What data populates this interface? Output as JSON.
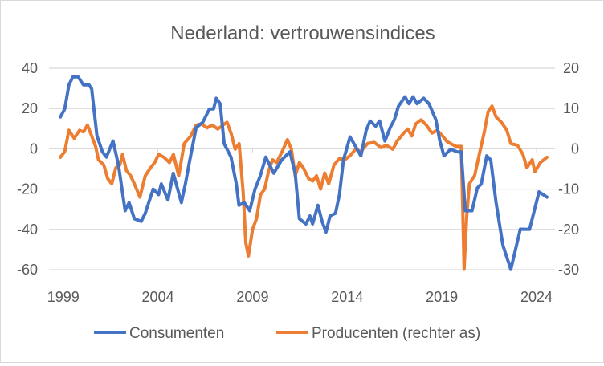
{
  "chart_data": {
    "type": "line",
    "title": "Nederland: vertrouwensindices",
    "xlabel": "",
    "ylabel": "",
    "xlim": [
      1998.8,
      2024.55
    ],
    "ylim_left": [
      -60,
      40
    ],
    "ylim_right": [
      -30,
      20
    ],
    "x_ticks": [
      1999,
      2004,
      2009,
      2014,
      2019,
      2024
    ],
    "x_tick_labels": [
      "1999",
      "2004",
      "2009",
      "2014",
      "2019",
      "2024"
    ],
    "y_left_ticks": [
      40,
      20,
      0,
      -20,
      -40,
      -60
    ],
    "y_left_tick_labels": [
      "40",
      "20",
      "0",
      "-20",
      "-40",
      "-60"
    ],
    "y_right_ticks": [
      20,
      10,
      0,
      -10,
      -20,
      -30
    ],
    "y_right_tick_labels": [
      "20",
      "10",
      "0",
      "-10",
      "-20",
      "-30"
    ],
    "grid": true,
    "legend_position": "bottom",
    "series": [
      {
        "name": "Consumenten",
        "axis": "left",
        "color": "#4472C4",
        "x": [
          1998.85,
          1999.08,
          1999.3,
          1999.51,
          1999.79,
          2000.07,
          2000.36,
          2000.5,
          2000.78,
          2001.07,
          2001.28,
          2001.63,
          2001.92,
          2002.27,
          2002.48,
          2002.76,
          2003.12,
          2003.33,
          2003.61,
          2003.75,
          2004.04,
          2004.18,
          2004.53,
          2004.81,
          2005.24,
          2005.45,
          2005.66,
          2006.02,
          2006.37,
          2006.72,
          2006.94,
          2007.08,
          2007.29,
          2007.5,
          2007.86,
          2008.14,
          2008.28,
          2008.56,
          2008.85,
          2009.13,
          2009.41,
          2009.7,
          2010.12,
          2010.54,
          2010.97,
          2011.25,
          2011.47,
          2011.82,
          2012.03,
          2012.17,
          2012.45,
          2012.67,
          2012.88,
          2013.09,
          2013.38,
          2013.59,
          2013.8,
          2014.15,
          2014.36,
          2014.72,
          2015.0,
          2015.21,
          2015.5,
          2015.71,
          2015.99,
          2016.27,
          2016.49,
          2016.7,
          2017.05,
          2017.26,
          2017.48,
          2017.69,
          2018.04,
          2018.32,
          2018.68,
          2018.89,
          2019.11,
          2019.46,
          2019.81,
          2020.02,
          2020.23,
          2020.59,
          2020.87,
          2021.08,
          2021.37,
          2021.58,
          2021.86,
          2022.22,
          2022.64,
          2023.14,
          2023.63,
          2024.13,
          2024.55
        ],
        "values": [
          15.8,
          19.8,
          31.7,
          35.7,
          35.7,
          31.7,
          31.7,
          29.8,
          6.5,
          -1.5,
          -4.1,
          3.9,
          -8.1,
          -30.7,
          -26.7,
          -34.7,
          -36,
          -32,
          -24,
          -20,
          -22.7,
          -17.4,
          -25.4,
          -12.1,
          -26.7,
          -17.4,
          -6.8,
          10.5,
          13.1,
          19.8,
          19.8,
          25.1,
          22.4,
          2.5,
          -4.1,
          -17.4,
          -28,
          -26.7,
          -30.7,
          -20,
          -13.4,
          -4.1,
          -12.1,
          -5.5,
          -1.5,
          -12.1,
          -34.7,
          -37.3,
          -33.3,
          -37.3,
          -28,
          -36,
          -41.3,
          -33.3,
          -32,
          -22.7,
          -5.5,
          5.9,
          2.5,
          -3.5,
          9.2,
          13.8,
          11.2,
          13.8,
          3.9,
          10.5,
          14.5,
          21.1,
          25.8,
          22.4,
          25.8,
          22.4,
          25.1,
          22.4,
          14.5,
          3.9,
          -3.5,
          -0.2,
          -1.5,
          -1.5,
          -30.7,
          -30.7,
          -19.4,
          -17.4,
          -3.5,
          -5.5,
          -26.7,
          -47.9,
          -59.9,
          -39.9,
          -40,
          -21.4,
          -24
        ]
      },
      {
        "name": "Producenten (rechter as)",
        "axis": "right",
        "color": "#ED7D31",
        "x": [
          1998.85,
          1999.08,
          1999.3,
          1999.58,
          1999.86,
          2000.07,
          2000.28,
          2000.5,
          2000.71,
          2000.86,
          2001.14,
          2001.35,
          2001.56,
          2001.78,
          2001.99,
          2002.13,
          2002.34,
          2002.55,
          2002.76,
          2003.05,
          2003.33,
          2003.61,
          2003.83,
          2004.04,
          2004.32,
          2004.61,
          2004.82,
          2005.1,
          2005.39,
          2005.74,
          2006.02,
          2006.31,
          2006.59,
          2006.87,
          2007.16,
          2007.44,
          2007.65,
          2007.86,
          2008.08,
          2008.29,
          2008.5,
          2008.64,
          2008.78,
          2009.0,
          2009.21,
          2009.42,
          2009.64,
          2009.85,
          2010.06,
          2010.27,
          2010.56,
          2010.84,
          2011.05,
          2011.25,
          2011.47,
          2011.68,
          2011.96,
          2012.17,
          2012.38,
          2012.59,
          2012.81,
          2013.02,
          2013.3,
          2013.59,
          2013.87,
          2014.15,
          2014.44,
          2014.72,
          2015.07,
          2015.43,
          2015.78,
          2016.06,
          2016.41,
          2016.63,
          2016.98,
          2017.2,
          2017.41,
          2017.62,
          2017.9,
          2018.18,
          2018.47,
          2018.75,
          2019.03,
          2019.25,
          2019.46,
          2019.74,
          2020.02,
          2020.09,
          2020.17,
          2020.31,
          2020.45,
          2020.73,
          2020.94,
          2021.23,
          2021.44,
          2021.65,
          2021.86,
          2022.14,
          2022.43,
          2022.64,
          2022.99,
          2023.28,
          2023.49,
          2023.77,
          2023.91,
          2024.2,
          2024.55
        ],
        "values": [
          -2.1,
          -0.7,
          4.6,
          2.6,
          4.6,
          4.2,
          5.9,
          3.2,
          0.6,
          -2.7,
          -4.0,
          -7.4,
          -8.7,
          -4.7,
          -4.0,
          -1.4,
          -5.4,
          -6.6,
          -8.7,
          -12.0,
          -6.7,
          -4.7,
          -3.4,
          -1.4,
          -2.1,
          -3.4,
          -1.4,
          -6.7,
          1.3,
          3.2,
          5.9,
          6.2,
          5.2,
          5.9,
          4.9,
          5.9,
          6.6,
          3.9,
          -0.1,
          1.3,
          -10.7,
          -23.3,
          -26.6,
          -20.0,
          -17.3,
          -11.4,
          -10.0,
          -5.4,
          -2.7,
          -3.4,
          -0.7,
          2.3,
          -0.1,
          -6.7,
          -3.4,
          -4.7,
          -7.4,
          -8.0,
          -6.7,
          -10.0,
          -6.0,
          -8.7,
          -4.0,
          -2.4,
          -2.7,
          -1.7,
          -0.1,
          -0.7,
          1.3,
          1.6,
          0.3,
          0.9,
          -0.1,
          1.9,
          3.9,
          4.9,
          3.2,
          6.2,
          7.2,
          5.9,
          3.9,
          4.6,
          3.2,
          1.9,
          1.3,
          0.6,
          0.6,
          -12.7,
          -29.9,
          -16.7,
          -8.7,
          -6.6,
          -2.1,
          3.9,
          9.2,
          10.6,
          7.9,
          6.6,
          4.6,
          1.3,
          0.9,
          -1.4,
          -4.7,
          -2.7,
          -5.7,
          -3.4,
          -2.1
        ]
      }
    ]
  }
}
